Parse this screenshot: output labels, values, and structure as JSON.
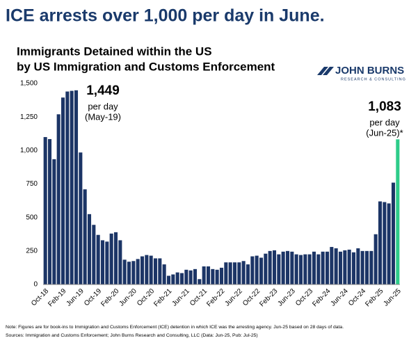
{
  "chart_data": {
    "type": "bar",
    "headline": "ICE arrests over 1,000 per day in June.",
    "title_lines": [
      "Immigrants Detained within the US",
      "by US Immigration and Customs Enforcement"
    ],
    "logo": {
      "name": "JOHN BURNS",
      "tagline": "RESEARCH & CONSULTING"
    },
    "categories": [
      "Oct-18",
      null,
      null,
      null,
      "Feb-19",
      null,
      null,
      null,
      "Jun-19",
      null,
      null,
      null,
      "Oct-19",
      null,
      null,
      null,
      "Feb-20",
      null,
      null,
      null,
      "Jun-20",
      null,
      null,
      null,
      "Oct-20",
      null,
      null,
      null,
      "Feb-21",
      null,
      null,
      null,
      "Jun-21",
      null,
      null,
      null,
      "Oct-21",
      null,
      null,
      null,
      "Feb-22",
      null,
      null,
      null,
      "Jun-22",
      null,
      null,
      null,
      "Oct-22",
      null,
      null,
      null,
      "Feb-23",
      null,
      null,
      null,
      "Jun-23",
      null,
      null,
      null,
      "Oct-23",
      null,
      null,
      null,
      "Feb-24",
      null,
      null,
      null,
      "Jun-24",
      null,
      null,
      null,
      "Oct-24",
      null,
      null,
      null,
      "Feb-25",
      null,
      null,
      null,
      "Jun-25"
    ],
    "values": [
      1100,
      1085,
      935,
      1270,
      1395,
      1440,
      1445,
      1449,
      985,
      710,
      525,
      445,
      370,
      330,
      320,
      380,
      390,
      330,
      185,
      170,
      175,
      190,
      210,
      220,
      215,
      195,
      195,
      150,
      65,
      75,
      90,
      85,
      110,
      105,
      115,
      40,
      135,
      135,
      115,
      110,
      125,
      165,
      165,
      165,
      165,
      175,
      150,
      210,
      215,
      200,
      230,
      250,
      255,
      225,
      245,
      250,
      245,
      225,
      220,
      225,
      225,
      245,
      225,
      245,
      245,
      280,
      270,
      245,
      255,
      260,
      240,
      270,
      250,
      250,
      250,
      375,
      620,
      615,
      605,
      760,
      1083
    ],
    "color": "#1c3566",
    "last_bar_color": "#2ecc8a",
    "ylim": [
      0,
      1500
    ],
    "yticks": [
      0,
      250,
      500,
      750,
      {
        "value": 1000,
        "label": "1,000"
      },
      {
        "value": 1250,
        "label": "1,250"
      },
      {
        "value": 1500,
        "label": "1,500"
      }
    ],
    "grid": false,
    "annotations": [
      {
        "lines": [
          "1,449",
          "per day",
          "(May-19)"
        ]
      },
      {
        "lines": [
          "1,083",
          "per day",
          "(Jun-25)*"
        ]
      }
    ],
    "notes": [
      "Note: Figures are for book-ins to Immigration and Customs Enforcement (ICE) detention in which ICE was the arresting agency. Jun-25 based on 28 days of data.",
      "Sources: Immigration and Customs Enforcement; John Burns Research and Consulting, LLC (Data: Jun-25, Pub: Jul-25)"
    ]
  }
}
